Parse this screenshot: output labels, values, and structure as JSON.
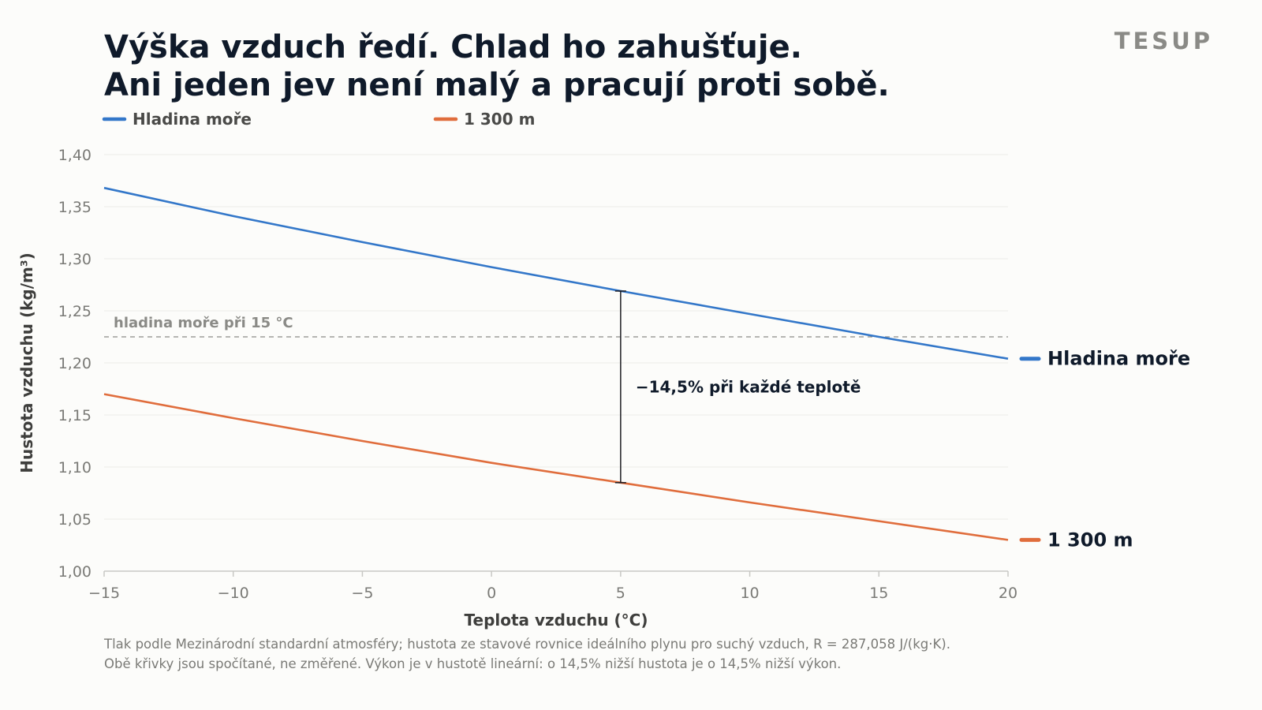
{
  "brand": "TESUP",
  "title_lines": [
    "Výška vzduch ředí. Chlad ho zahušťuje.",
    "Ani jeden jev není malý a pracují proti sobě."
  ],
  "footnotes": [
    "Tlak podle Mezinárodní standardní atmosféry; hustota ze stavové rovnice ideálního plynu pro suchý vzduch, R = 287,058 J/(kg·K).",
    "Obě křivky jsou spočítané, ne změřené. Výkon je v hustotě lineární: o 14,5% nižší hustota je o 14,5% nižší výkon."
  ],
  "chart_data": {
    "type": "line",
    "xlabel": "Teplota vzduchu (°C)",
    "ylabel": "Hustota vzduchu (kg/m³)",
    "xlim": [
      -15,
      20
    ],
    "ylim": [
      1.0,
      1.4
    ],
    "x_ticks": [
      -15,
      -10,
      -5,
      0,
      5,
      10,
      15,
      20
    ],
    "x_tick_labels": [
      "−15",
      "−10",
      "−5",
      "0",
      "5",
      "10",
      "15",
      "20"
    ],
    "y_ticks": [
      1.0,
      1.05,
      1.1,
      1.15,
      1.2,
      1.25,
      1.3,
      1.35,
      1.4
    ],
    "y_tick_labels": [
      "1,00",
      "1,05",
      "1,10",
      "1,15",
      "1,20",
      "1,25",
      "1,30",
      "1,35",
      "1,40"
    ],
    "grid": "horizontal",
    "legend_position": "top-left",
    "series": [
      {
        "name": "Hladina moře",
        "color": "#3377c9",
        "x": [
          -15,
          -10,
          -5,
          0,
          5,
          10,
          15,
          20
        ],
        "y": [
          1.368,
          1.341,
          1.316,
          1.292,
          1.269,
          1.247,
          1.225,
          1.204
        ]
      },
      {
        "name": "1 300 m",
        "color": "#e06d3c",
        "x": [
          -15,
          -10,
          -5,
          0,
          5,
          10,
          15,
          20
        ],
        "y": [
          1.17,
          1.147,
          1.125,
          1.104,
          1.085,
          1.066,
          1.048,
          1.03
        ]
      }
    ],
    "reference_line": {
      "y": 1.225,
      "label": "hladina moře při 15 °C",
      "color": "#8a8a86"
    },
    "gap_annotation": {
      "x": 5,
      "y_top": 1.269,
      "y_bottom": 1.085,
      "label": "−14,5% při každé teplotě"
    }
  }
}
